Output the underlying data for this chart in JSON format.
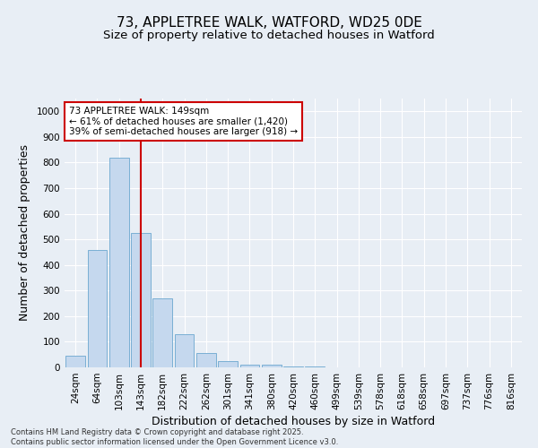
{
  "title_line1": "73, APPLETREE WALK, WATFORD, WD25 0DE",
  "title_line2": "Size of property relative to detached houses in Watford",
  "xlabel": "Distribution of detached houses by size in Watford",
  "ylabel": "Number of detached properties",
  "categories": [
    "24sqm",
    "64sqm",
    "103sqm",
    "143sqm",
    "182sqm",
    "222sqm",
    "262sqm",
    "301sqm",
    "341sqm",
    "380sqm",
    "420sqm",
    "460sqm",
    "499sqm",
    "539sqm",
    "578sqm",
    "618sqm",
    "658sqm",
    "697sqm",
    "737sqm",
    "776sqm",
    "816sqm"
  ],
  "values": [
    45,
    460,
    820,
    525,
    270,
    130,
    55,
    25,
    10,
    10,
    2,
    2,
    0,
    0,
    0,
    0,
    0,
    0,
    0,
    0,
    0
  ],
  "bar_color": "#c5d8ee",
  "bar_edge_color": "#7aafd4",
  "vline_x": 3,
  "vline_color": "#cc0000",
  "annotation_text": "73 APPLETREE WALK: 149sqm\n← 61% of detached houses are smaller (1,420)\n39% of semi-detached houses are larger (918) →",
  "annotation_box_color": "#ffffff",
  "annotation_box_edge": "#cc0000",
  "ylim": [
    0,
    1050
  ],
  "yticks": [
    0,
    100,
    200,
    300,
    400,
    500,
    600,
    700,
    800,
    900,
    1000
  ],
  "background_color": "#e8eef5",
  "footer_text": "Contains HM Land Registry data © Crown copyright and database right 2025.\nContains public sector information licensed under the Open Government Licence v3.0.",
  "title_fontsize": 11,
  "subtitle_fontsize": 9.5,
  "axis_label_fontsize": 9,
  "tick_fontsize": 7.5,
  "annotation_fontsize": 7.5,
  "footer_fontsize": 6.0
}
